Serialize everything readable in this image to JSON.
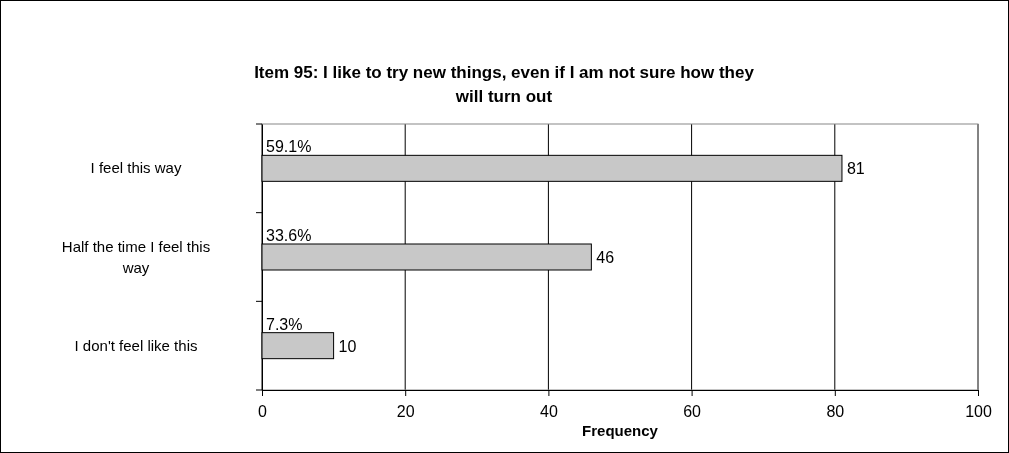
{
  "chart_data": {
    "type": "bar",
    "orientation": "horizontal",
    "title": "Item 95: I like to try new things, even if I am not sure how they will turn out",
    "xlabel": "Frequency",
    "categories": [
      "I feel this way",
      "Half the time I feel this way",
      "I don't feel like this"
    ],
    "values": [
      81,
      46,
      10
    ],
    "color": "#c8c8c8",
    "data_labels": true,
    "xlim": [
      0,
      100
    ],
    "xticks": [
      0,
      20,
      40,
      60,
      80,
      100
    ],
    "grid": "x",
    "annotations": [
      "59.1%",
      "33.6%",
      "7.3%"
    ]
  }
}
